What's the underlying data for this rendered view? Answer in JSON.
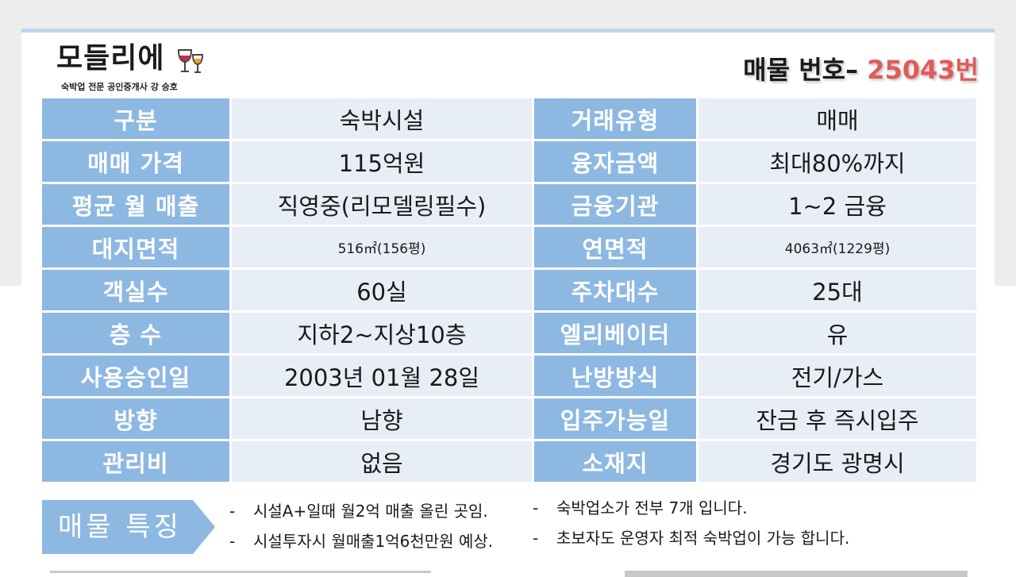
{
  "header": {
    "logo_main": "모들리에",
    "logo_sub": "숙박업 전문 공인중개사 강 승호",
    "listing_prefix": "매물 번호– ",
    "listing_number": "25043번"
  },
  "rows": [
    {
      "l1": "구분",
      "v1": "숙박시설",
      "l2": "거래유형",
      "v2": "매매"
    },
    {
      "l1": "매매 가격",
      "v1": "115억원",
      "l2": "융자금액",
      "v2": "최대80%까지"
    },
    {
      "l1": "평균 월 매출",
      "v1": "직영중(리모델링필수)",
      "l2": "금융기관",
      "v2": "1~2 금융"
    },
    {
      "l1": "대지면적",
      "v1": "516㎡(156평)",
      "l2": "연면적",
      "v2": "4063㎡(1229평)"
    },
    {
      "l1": "객실수",
      "v1": "60실",
      "l2": "주차대수",
      "v2": "25대"
    },
    {
      "l1": "층 수",
      "v1": "지하2~지상10층",
      "l2": "엘리베이터",
      "v2": "유"
    },
    {
      "l1": "사용승인일",
      "v1": "2003년 01월 28일",
      "l2": "난방방식",
      "v2": "전기/가스"
    },
    {
      "l1": "방향",
      "v1": "남향",
      "l2": "입주가능일",
      "v2": "잔금 후 즉시입주"
    },
    {
      "l1": "관리비",
      "v1": "없음",
      "l2": "소재지",
      "v2": "경기도 광명시"
    }
  ],
  "features": {
    "tag": "매물 특징",
    "bullet": "-",
    "left": [
      "시설A+일때 월2억 매출 올린 곳임.",
      "시설투자시 월매출1억6천만원 예상."
    ],
    "right": [
      "숙박업소가 전부 7개 입니다.",
      "초보자도 운영자 최적 숙박업이 가능 합니다."
    ]
  },
  "colors": {
    "label_bg": "#8db8e2",
    "value_bg": "#e8eef6",
    "accent": "#e25a5a",
    "top_line": "#bcd6ee"
  }
}
